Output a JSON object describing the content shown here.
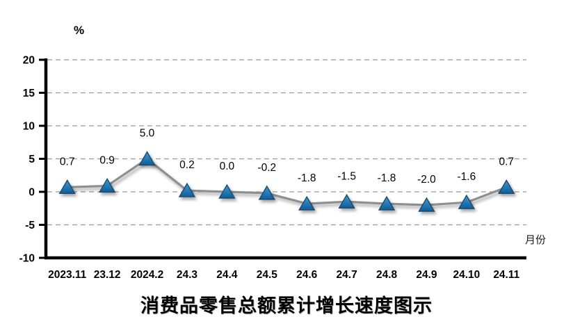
{
  "chart": {
    "title": "消费品零售总额累计增长速度图示",
    "y_unit_label": "%",
    "x_unit_label": "月份"
  },
  "chart_data": {
    "type": "line",
    "title": "消费品零售总额累计增长速度图示",
    "ylabel": "%",
    "xlabel": "月份",
    "categories": [
      "2023.11",
      "23.12",
      "2024.2",
      "24.3",
      "24.4",
      "24.5",
      "24.6",
      "24.7",
      "24.8",
      "24.9",
      "24.10",
      "24.11"
    ],
    "values": [
      0.7,
      0.9,
      5.0,
      0.2,
      0.0,
      -0.2,
      -1.8,
      -1.5,
      -1.8,
      -2.0,
      -1.6,
      0.7
    ],
    "data_labels": [
      "0.7",
      "0.9",
      "5.0",
      "0.2",
      "0.0",
      "-0.2",
      "-1.8",
      "-1.5",
      "-1.8",
      "-2.0",
      "-1.6",
      "0.7"
    ],
    "ylim": [
      -10,
      20
    ],
    "y_ticks": [
      20,
      15,
      10,
      5,
      0,
      -5,
      -10
    ],
    "grid": true,
    "legend": false,
    "colors": {
      "line": "#8f8f8f",
      "marker_top": "#3d9ad1",
      "marker_bottom": "#0b5e9d",
      "marker_edge": "#24496b",
      "axis": "#000000",
      "gridline": "#999999",
      "label_text": "#000000"
    }
  }
}
